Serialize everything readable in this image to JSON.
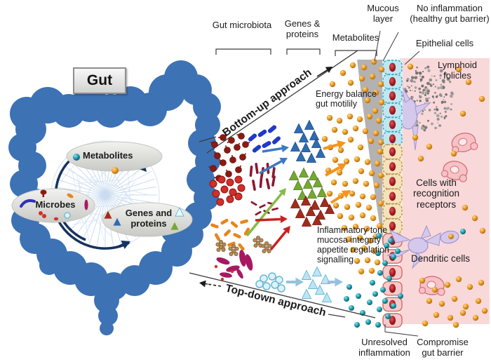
{
  "gut_box": {
    "label": "Gut"
  },
  "hub": {
    "metabolites_label": "Metabolites",
    "microbes_label": "Microbes",
    "genes_proteins_label": "Genes and proteins"
  },
  "column_headers": {
    "gut_microbiota": "Gut microbiota",
    "genes_proteins": "Genes & proteins",
    "metabolites": "Metabolites"
  },
  "approach_labels": {
    "bottom_up": "Bottom-up approach",
    "top_down": "Top-down approach"
  },
  "annotations": {
    "energy": "Energy balance\ngut motilily",
    "inflammatory": "Inflammatory tone\nmucosa integrity\nappetite regulation\nsignalling"
  },
  "right_labels": {
    "mucous_layer": "Mucous\nlayer",
    "no_inflammation": "No inflammation\n(healthy gut barrier)",
    "epithelial_cells": "Epithelial cells",
    "lymphoid_folicles": "Lymphoid\nfolicles",
    "cells_recognition": "Cells with\nrecognition\nreceptors",
    "dendritic_cells": "Dendritic cells",
    "unresolved_inflammation": "Unresolved\ninflammation",
    "compromise_gut_barrier": "Compromise\ngut barrier"
  },
  "colors": {
    "gut_blue": "#3d72b4",
    "mucous_gray": "#b3b1b2",
    "tissue_pink": "#f9d8d9",
    "orange_dot": "#e8921e",
    "teal_dot": "#1a98a8",
    "blue_triangle": "#2e6cb2",
    "green_triangle": "#76a832",
    "red_triangle": "#a22c1c",
    "lightblue_triangle_fill": "#bce4f4",
    "lightblue_triangle_stroke": "#58aed0",
    "blue_arrow": "#3a7ac2",
    "green_arrow": "#84bc48",
    "red_arrow": "#cc2020",
    "orange_arrow": "#f4951c",
    "lightblue_arrow": "#94c2dc",
    "navy_arc": "#16335f",
    "purple_cell": "#d4c9ec",
    "purple_cell_stroke": "#a394cf",
    "recognition_cell_fill": "#f6c2c5",
    "recognition_cell_stroke": "#d6737f",
    "maroon_bacteria": "#8c1a12",
    "blue_rod": "#2238c8",
    "red_cocci": "#d03028",
    "dark_rod": "#8c1830",
    "orange_rod": "#e8851c",
    "tan_cocci": "#b08a58",
    "magenta_bacteria": "#a81860",
    "lightblue_circle_fill": "#def2fb",
    "lightblue_circle_stroke": "#6cb6d4",
    "cyan_cell_fill": "#bfe7f0",
    "cyan_cell_stroke": "#3aa8c8",
    "tan_cell_fill": "#f4e2ba",
    "tan_cell_stroke": "#bb9350",
    "pink_cell_fill": "#f6caca",
    "pink_cell_stroke": "#cf6a6a",
    "web_line": "#cbdcf0",
    "line_dark": "#3c3c3c"
  }
}
